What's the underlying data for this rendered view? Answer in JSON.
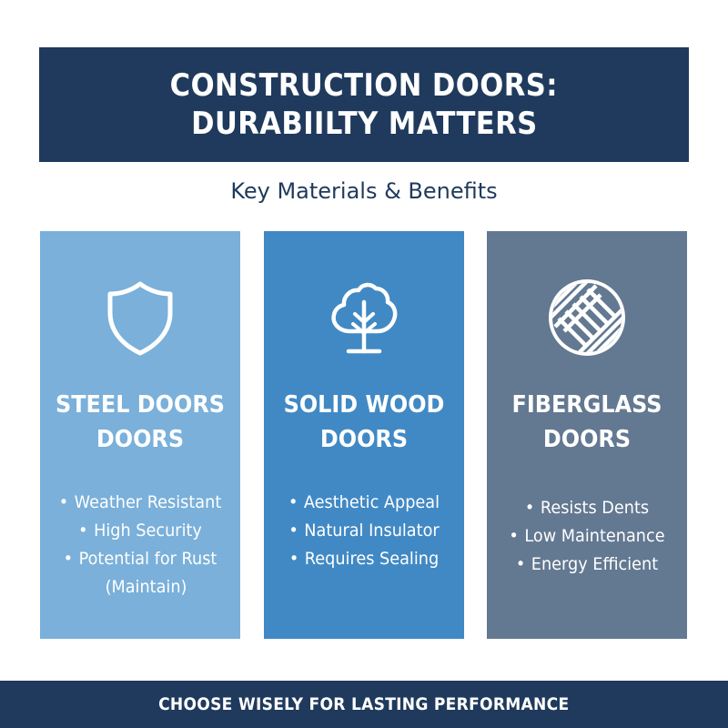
{
  "header": {
    "line1": "CONSTRUCTION DOORS:",
    "line2": "DURABIILTY MATTERS"
  },
  "subtitle": "Key Materials & Benefits",
  "colors": {
    "navy": "#1f3a5c",
    "steel": "#7ab0da",
    "wood": "#4189c4",
    "fiberglass": "#637891"
  },
  "cards": [
    {
      "icon": "shield-icon",
      "name_line1": "STEEL DOORS",
      "name_line2": "DOORS",
      "bullets": [
        "Weather Resistant",
        "High Security",
        "Potential for Rust"
      ],
      "bullet_cont": "(Maintain)"
    },
    {
      "icon": "tree-icon",
      "name_line1": "SOLID WOOD",
      "name_line2": "DOORS",
      "bullets": [
        "Aesthetic Appeal",
        "Natural Insulator",
        "Requires Sealing"
      ]
    },
    {
      "icon": "woven-texture-icon",
      "name_line1": "FIBERGLASS",
      "name_line2": "DOORS",
      "bullets": [
        "Resists Dents",
        "Low Maintenance",
        "Energy Efficient"
      ]
    }
  ],
  "footer": "CHOOSE WISELY FOR LASTING PERFORMANCE"
}
